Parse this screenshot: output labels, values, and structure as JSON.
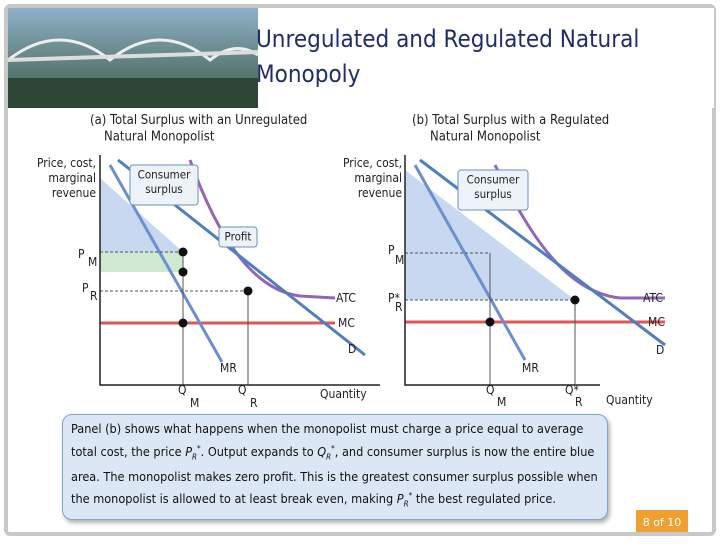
{
  "title": "Unregulated and Regulated Natural Monopoly",
  "panels": [
    {
      "title": "(a) Total Surplus with an Unregulated Natural Monopolist",
      "labels": [
        "Price, cost, marginal revenue",
        "Consumer surplus",
        "Profit",
        "P",
        "M",
        "P",
        "R",
        "ATC",
        "MC",
        "D",
        "MR",
        "Q",
        "M",
        "Q",
        "R",
        "Quantity"
      ]
    },
    {
      "title": "(b) Total Surplus with a Regulated Natural Monopolist",
      "labels": [
        "Price, cost, marginal revenue",
        "Consumer surplus",
        "P",
        "M",
        "P*",
        "R",
        "ATC",
        "MC",
        "D",
        "MR",
        "Q",
        "M",
        "Q*",
        "R",
        "Quantity"
      ]
    }
  ],
  "caption": [
    "Panel (b) shows what happens when the monopolist must charge a price equal to average total cost, the price ",
    "P",
    "R",
    "*",
    ". Output expands to ",
    "Q",
    "R",
    "*",
    ", and consumer surplus is now the entire blue area. The monopolist makes zero profit. This is the greatest consumer surplus possible when the monopolist is allowed to at least break even, making ",
    "P",
    "R",
    "*",
    " the best regulated price."
  ],
  "page_number": "8 of 10"
}
